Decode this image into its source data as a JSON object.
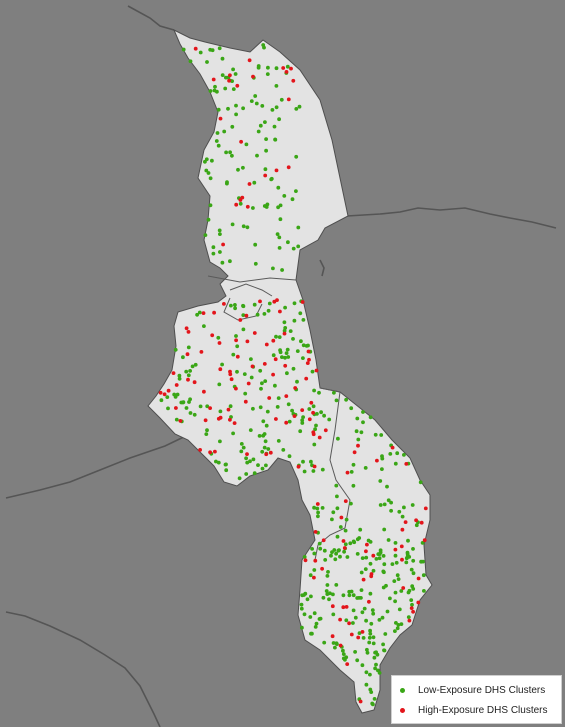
{
  "colors": {
    "background": "#7f7f7f",
    "land": "#e3e3e3",
    "boundary": "#555555",
    "low_exposure": "#3aa616",
    "high_exposure": "#e3151b"
  },
  "legend": {
    "items": [
      {
        "label": "Low-Exposure DHS Clusters",
        "color": "#3aa616"
      },
      {
        "label": "High-Exposure DHS Clusters",
        "color": "#e3151b"
      }
    ]
  }
}
